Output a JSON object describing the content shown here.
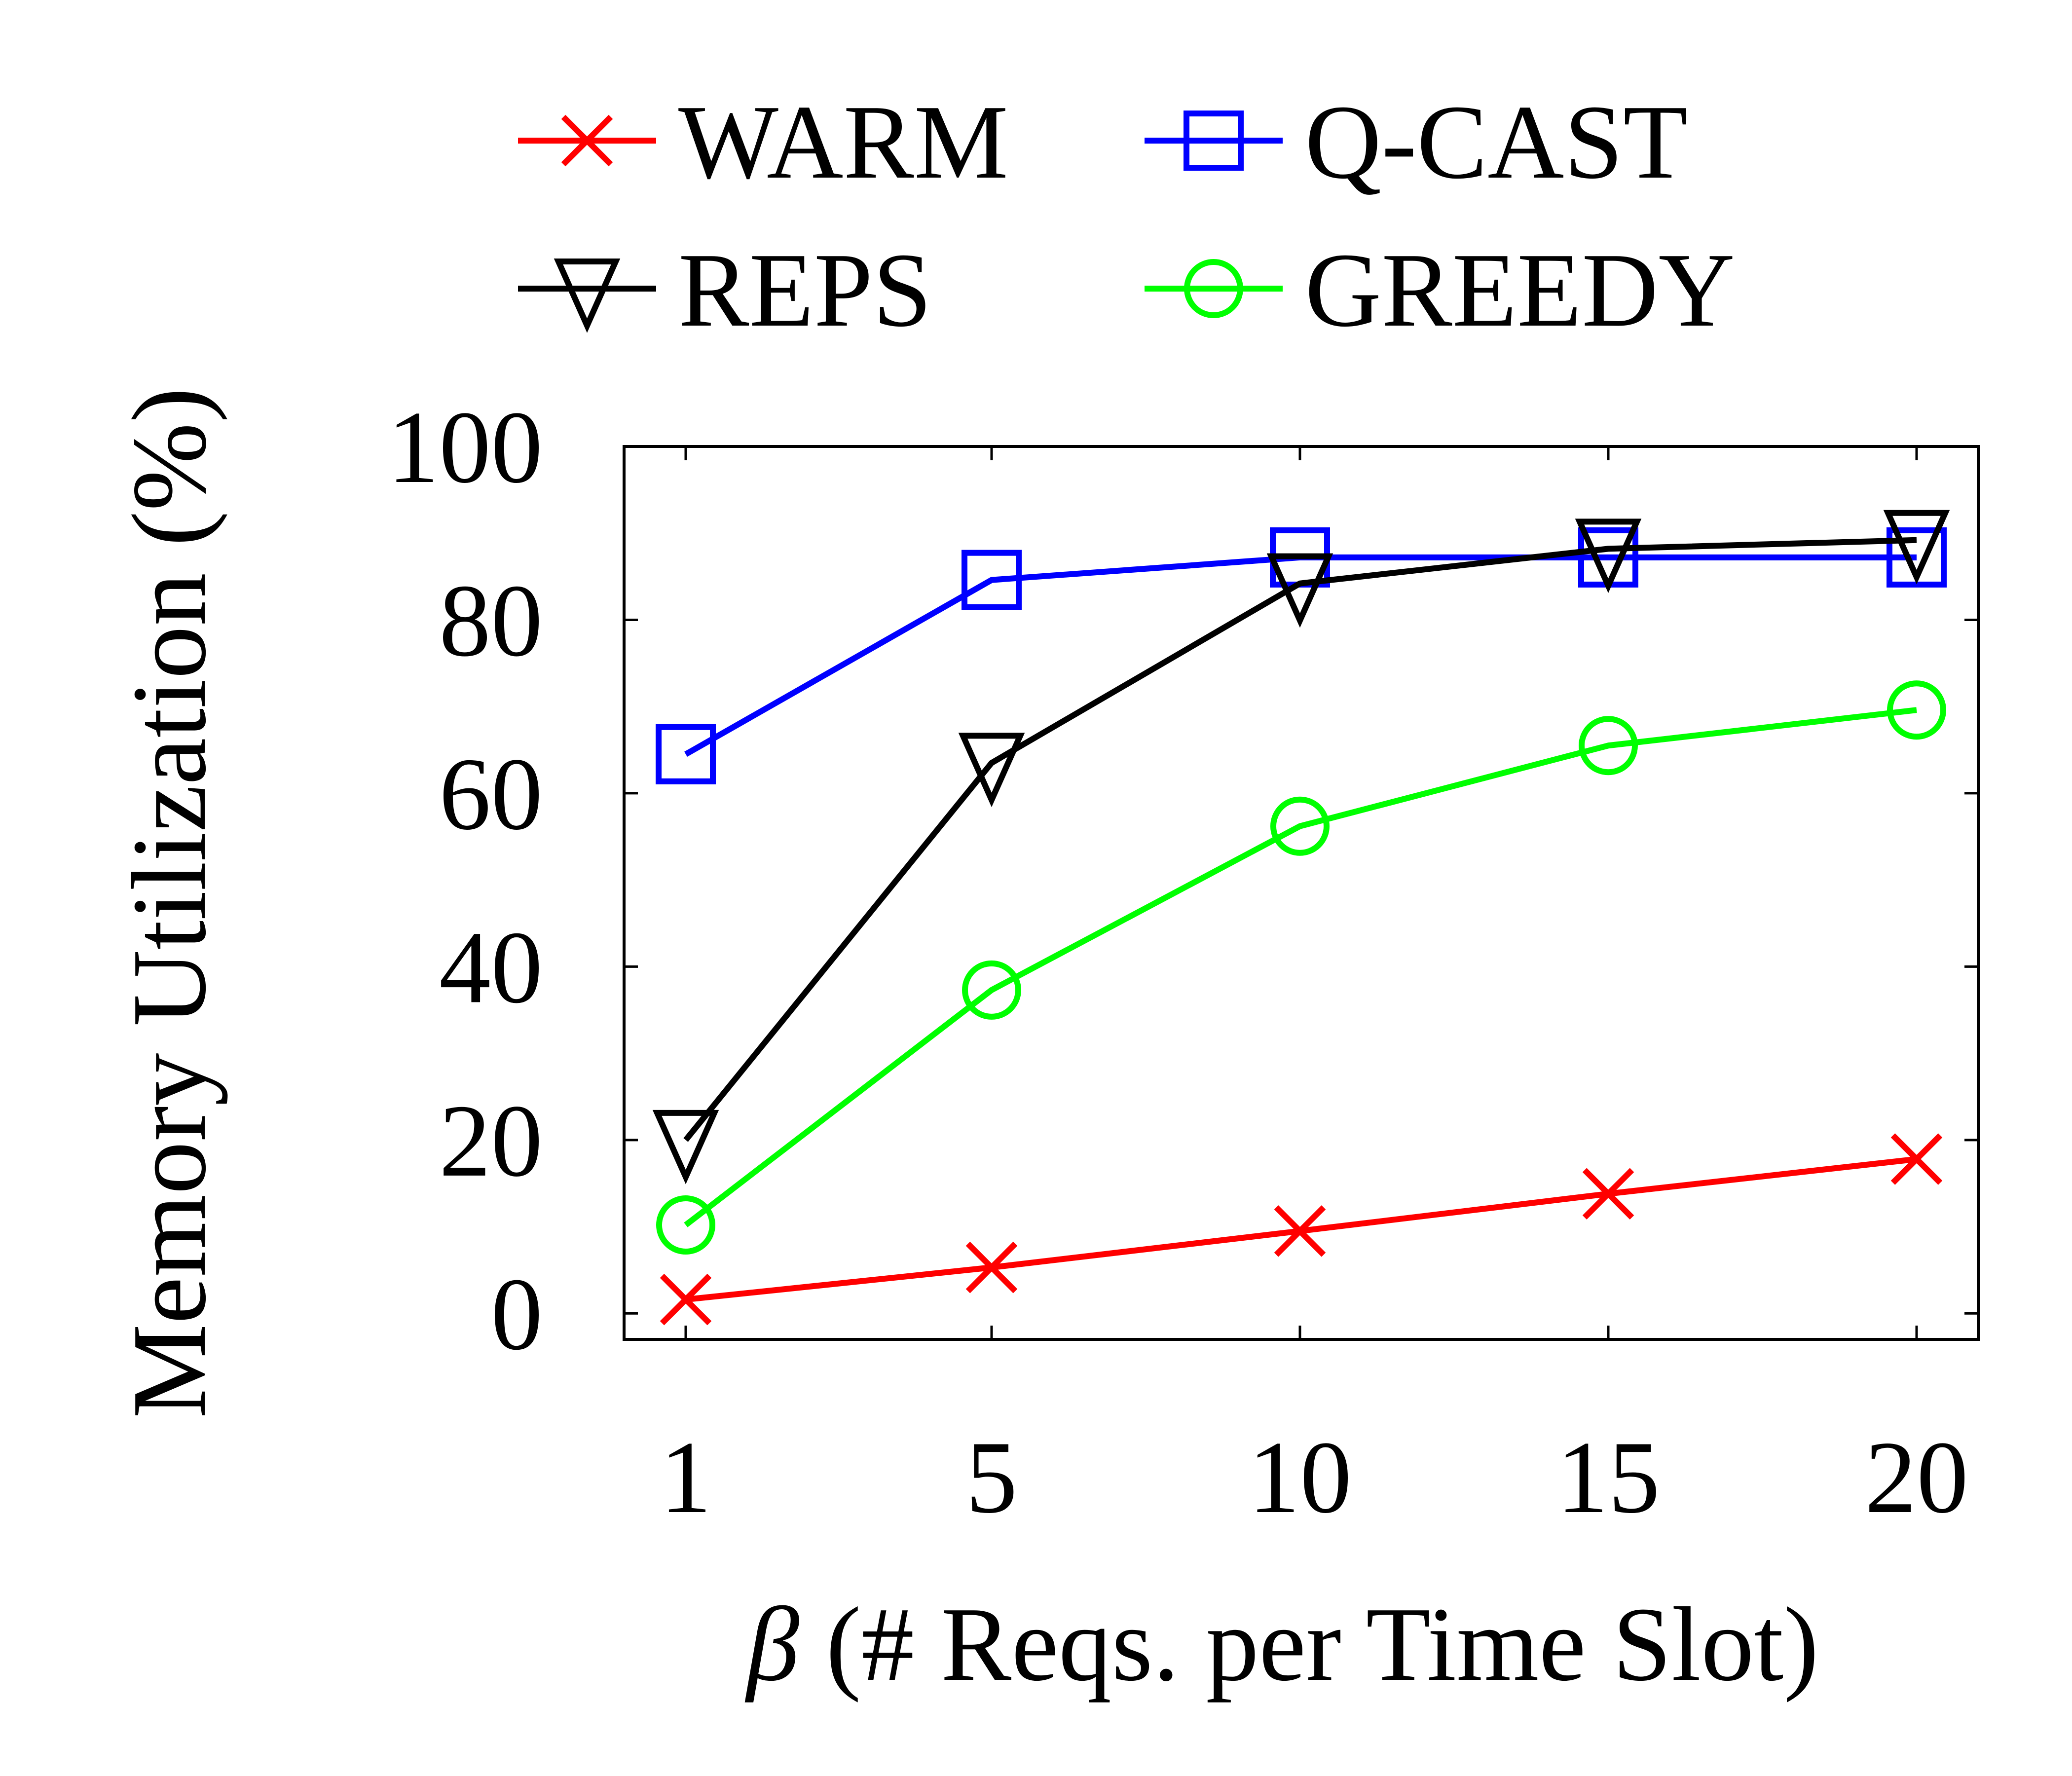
{
  "chart_data": {
    "type": "line",
    "xlabel_symbol": "β",
    "xlabel_rest": " (# Reqs. per Time Slot)",
    "ylabel": "Memory Utilization (%)",
    "x": [
      1,
      5,
      10,
      15,
      20
    ],
    "x_tick_labels": [
      "1",
      "5",
      "10",
      "15",
      "20"
    ],
    "y_ticks": [
      0,
      20,
      40,
      60,
      80,
      100
    ],
    "y_tick_labels": [
      "0",
      "20",
      "40",
      "60",
      "80",
      "100"
    ],
    "ylim": [
      -3,
      100
    ],
    "grid": false,
    "legend_position": "top",
    "series": [
      {
        "name": "WARM",
        "color": "#ff0000",
        "marker": "x-icon",
        "values": [
          1.6,
          5.3,
          9.5,
          13.8,
          17.8
        ]
      },
      {
        "name": "Q-CAST",
        "color": "#0000ff",
        "marker": "square-icon",
        "values": [
          64.5,
          84.6,
          87.2,
          87.2,
          87.2
        ]
      },
      {
        "name": "REPS",
        "color": "#000000",
        "marker": "down-triangle-icon",
        "values": [
          20.0,
          63.5,
          84.2,
          88.2,
          89.2
        ]
      },
      {
        "name": "GREEDY",
        "color": "#00ff00",
        "marker": "circle-icon",
        "values": [
          10.2,
          37.3,
          56.2,
          65.5,
          69.6
        ]
      }
    ]
  }
}
